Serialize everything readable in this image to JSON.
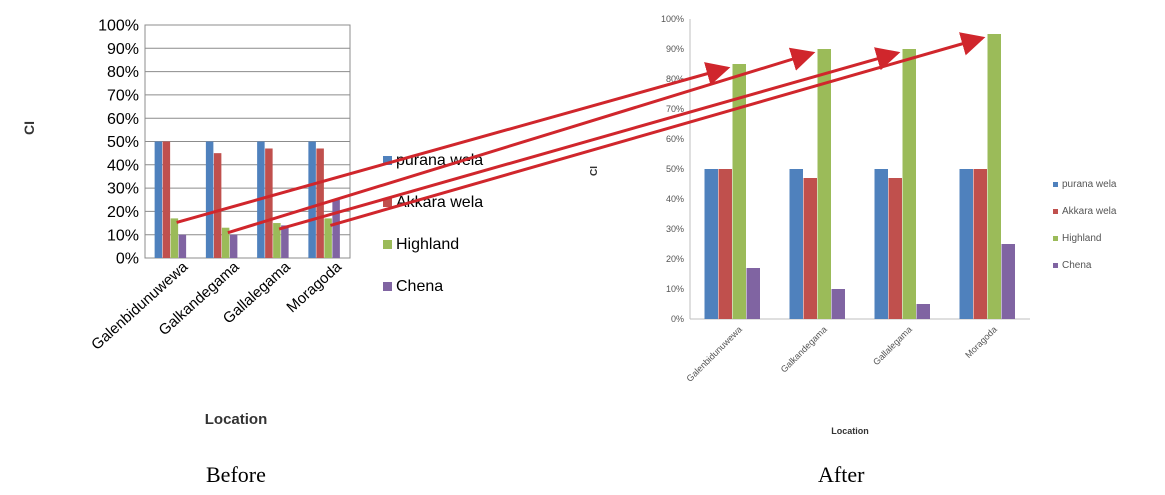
{
  "chart_data": [
    {
      "type": "bar",
      "caption": "Before",
      "categories": [
        "Galenbidunuwewa",
        "Galkandegama",
        "Gallalegama",
        "Moragoda"
      ],
      "series": [
        {
          "name": "purana wela",
          "color": "#4f81bd",
          "values": [
            50,
            50,
            50,
            50
          ]
        },
        {
          "name": "Akkara wela",
          "color": "#c0504d",
          "values": [
            50,
            45,
            47,
            47
          ]
        },
        {
          "name": "Highland",
          "color": "#9bbb59",
          "values": [
            17,
            13,
            15,
            17
          ]
        },
        {
          "name": "Chena",
          "color": "#8064a2",
          "values": [
            10,
            10,
            14,
            25
          ]
        }
      ],
      "xlabel": "Location",
      "ylabel": "CI",
      "ylim": [
        0,
        100
      ],
      "yticks": [
        "0%",
        "10%",
        "20%",
        "30%",
        "40%",
        "50%",
        "60%",
        "70%",
        "80%",
        "90%",
        "100%"
      ],
      "grid": true,
      "legend_position": "right"
    },
    {
      "type": "bar",
      "caption": "After",
      "categories": [
        "Galenbidunuwewa",
        "Galkandegama",
        "Gallalegama",
        "Moragoda"
      ],
      "series": [
        {
          "name": "purana wela",
          "color": "#4f81bd",
          "values": [
            50,
            50,
            50,
            50
          ]
        },
        {
          "name": "Akkara wela",
          "color": "#c0504d",
          "values": [
            50,
            47,
            47,
            50
          ]
        },
        {
          "name": "Highland",
          "color": "#9bbb59",
          "values": [
            85,
            90,
            90,
            95
          ]
        },
        {
          "name": "Chena",
          "color": "#8064a2",
          "values": [
            17,
            10,
            5,
            25
          ]
        }
      ],
      "xlabel": "Location",
      "ylabel": "CI",
      "ylim": [
        0,
        100
      ],
      "yticks": [
        "0%",
        "10%",
        "20%",
        "30%",
        "40%",
        "50%",
        "60%",
        "70%",
        "80%",
        "90%",
        "100%"
      ],
      "grid": false,
      "legend_position": "right"
    }
  ],
  "annotations": {
    "arrow_color": "#d0262c",
    "arrows": [
      {
        "from_category": "Galenbidunuwewa",
        "to_category": "Galenbidunuwewa",
        "series": "Highland"
      },
      {
        "from_category": "Galkandegama",
        "to_category": "Galkandegama",
        "series": "Highland"
      },
      {
        "from_category": "Gallalegama",
        "to_category": "Gallalegama",
        "series": "Highland"
      },
      {
        "from_category": "Moragoda",
        "to_category": "Moragoda",
        "series": "Highland"
      }
    ]
  },
  "captions": {
    "before": "Before",
    "after": "After"
  }
}
